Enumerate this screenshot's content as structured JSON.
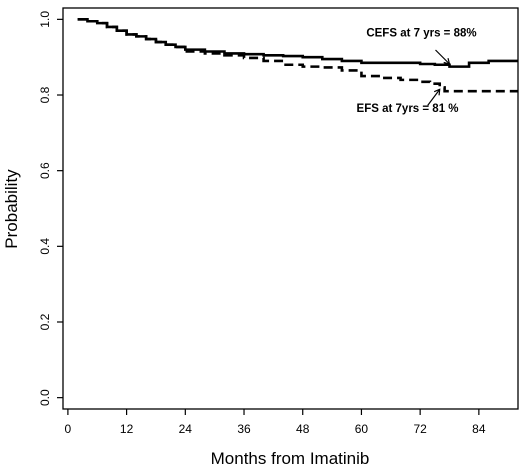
{
  "chart_data": {
    "type": "line",
    "title": "",
    "xlabel": "Months from Imatinib",
    "ylabel": "Probability",
    "xlim": [
      -1,
      92
    ],
    "ylim": [
      -0.03,
      1.03
    ],
    "xticks": [
      0,
      12,
      24,
      36,
      48,
      60,
      72,
      84
    ],
    "yticks": [
      0.0,
      0.2,
      0.4,
      0.6,
      0.8,
      1.0
    ],
    "ytick_labels": [
      "0.0",
      "0.2",
      "0.4",
      "0.6",
      "0.8",
      "1.0"
    ],
    "series": [
      {
        "style": "solid",
        "x": [
          2,
          4,
          6,
          8,
          10,
          12,
          14,
          16,
          18,
          20,
          22,
          24,
          28,
          32,
          36,
          40,
          44,
          48,
          52,
          56,
          60,
          64,
          68,
          72,
          75,
          78,
          82,
          86,
          92
        ],
        "y": [
          1.0,
          0.995,
          0.99,
          0.98,
          0.97,
          0.96,
          0.955,
          0.948,
          0.94,
          0.933,
          0.927,
          0.92,
          0.915,
          0.91,
          0.908,
          0.905,
          0.903,
          0.9,
          0.895,
          0.89,
          0.885,
          0.885,
          0.885,
          0.882,
          0.88,
          0.875,
          0.885,
          0.89,
          0.89
        ]
      },
      {
        "style": "dashed",
        "x": [
          2,
          4,
          6,
          8,
          10,
          12,
          14,
          16,
          18,
          20,
          22,
          24,
          28,
          32,
          36,
          40,
          44,
          48,
          52,
          56,
          60,
          64,
          68,
          72,
          74,
          76,
          77,
          80,
          92
        ],
        "y": [
          1.0,
          0.995,
          0.99,
          0.98,
          0.97,
          0.96,
          0.955,
          0.948,
          0.94,
          0.933,
          0.927,
          0.915,
          0.91,
          0.905,
          0.898,
          0.89,
          0.88,
          0.875,
          0.873,
          0.865,
          0.85,
          0.845,
          0.84,
          0.835,
          0.83,
          0.82,
          0.81,
          0.81,
          0.81
        ]
      }
    ],
    "annotations": [
      {
        "text": "CEFS at 7 yrs = 88%",
        "x": 61,
        "y": 0.955,
        "arrow_to": [
          78,
          0.882
        ]
      },
      {
        "text": "EFS at 7yrs = 81 %",
        "x": 59,
        "y": 0.755,
        "arrow_to": [
          76,
          0.815
        ]
      }
    ],
    "grid": false,
    "legend": "none"
  }
}
